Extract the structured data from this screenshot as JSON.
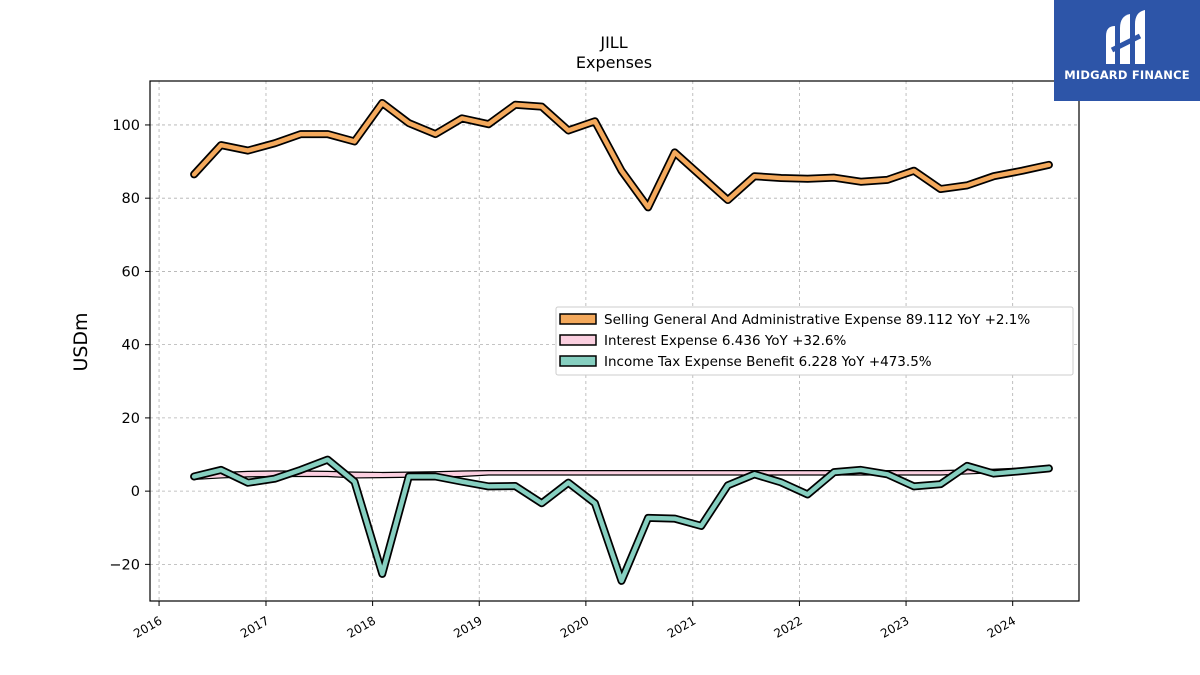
{
  "brand": {
    "name": "MIDGARD FINANCE",
    "bg_color": "#2d55a8"
  },
  "chart_data": {
    "type": "line",
    "title": "JILL",
    "subtitle": "Expenses",
    "ylabel": "USDm",
    "xlabel": "",
    "ylim": [
      -30,
      112
    ],
    "xlim": [
      "2015-12-01",
      "2024-08-15"
    ],
    "yticks": [
      -20,
      0,
      20,
      40,
      60,
      80,
      100
    ],
    "ytick_labels": [
      "−20",
      "0",
      "20",
      "40",
      "60",
      "80",
      "100"
    ],
    "xticks": [
      "2016-01-01",
      "2017-01-01",
      "2018-01-01",
      "2019-01-01",
      "2020-01-01",
      "2021-01-01",
      "2022-01-01",
      "2023-01-01",
      "2024-01-01"
    ],
    "xtick_labels": [
      "2016",
      "2017",
      "2018",
      "2019",
      "2020",
      "2021",
      "2022",
      "2023",
      "2024"
    ],
    "grid": true,
    "legend_position": "center-right",
    "series": [
      {
        "name": "Selling General And Administrative Expense",
        "legend": "Selling General And Administrative Expense  89.112 YoY +2.1%",
        "color": "#f4a95c",
        "style": "outlined-thick",
        "x": [
          "2016-04-30",
          "2016-07-31",
          "2016-10-31",
          "2017-01-31",
          "2017-04-30",
          "2017-07-31",
          "2017-10-31",
          "2018-02-03",
          "2018-05-05",
          "2018-08-04",
          "2018-11-03",
          "2019-02-02",
          "2019-05-04",
          "2019-08-03",
          "2019-11-02",
          "2020-02-01",
          "2020-05-02",
          "2020-08-01",
          "2020-10-31",
          "2021-01-30",
          "2021-05-01",
          "2021-07-31",
          "2021-10-30",
          "2022-01-29",
          "2022-04-30",
          "2022-07-30",
          "2022-10-29",
          "2023-01-28",
          "2023-04-29",
          "2023-07-29",
          "2023-10-28",
          "2024-02-03",
          "2024-05-04"
        ],
        "y": [
          86.5,
          94.5,
          93,
          95,
          97.5,
          97.5,
          95.5,
          106,
          100.5,
          97.5,
          101.8,
          100.2,
          105.5,
          105,
          98.5,
          101,
          87.5,
          77.5,
          92.5,
          86,
          79.5,
          86,
          85.5,
          85.3,
          85.6,
          84.5,
          85,
          87.5,
          82.5,
          83.5,
          86,
          87.5,
          89.1
        ]
      },
      {
        "name": "Interest Expense",
        "legend": "Interest Expense  6.436 YoY +32.6%",
        "color": "#fbcfe0",
        "style": "band",
        "x": [
          "2016-04-30",
          "2016-07-31",
          "2016-10-31",
          "2017-01-31",
          "2017-04-30",
          "2017-07-31",
          "2017-10-31",
          "2018-02-03",
          "2018-05-05",
          "2018-08-04",
          "2018-11-03",
          "2019-02-02",
          "2019-05-04",
          "2019-08-03",
          "2019-11-02",
          "2020-02-01",
          "2020-05-02",
          "2020-08-01",
          "2020-10-31",
          "2021-01-30",
          "2021-05-01",
          "2021-07-31",
          "2021-10-30",
          "2022-01-29",
          "2022-04-30",
          "2022-07-30",
          "2022-10-29",
          "2023-01-28",
          "2023-04-29",
          "2023-07-29",
          "2023-10-28",
          "2024-02-03",
          "2024-05-04"
        ],
        "y": [
          4.6,
          5.1,
          5.4,
          5.5,
          5.5,
          5.4,
          5.2,
          5.1,
          5.2,
          5.3,
          5.5,
          5.6,
          5.6,
          5.6,
          5.6,
          5.6,
          5.6,
          5.6,
          5.6,
          5.6,
          5.6,
          5.6,
          5.6,
          5.6,
          5.6,
          5.6,
          5.6,
          5.6,
          5.6,
          5.8,
          6.0,
          6.3,
          6.4
        ],
        "y_low": [
          3.2,
          3.6,
          3.9,
          4.0,
          4.0,
          4.0,
          3.6,
          3.7,
          3.8,
          3.9,
          4.0,
          4.4,
          4.4,
          4.4,
          4.4,
          4.4,
          4.4,
          4.4,
          4.4,
          4.4,
          4.4,
          4.4,
          4.4,
          4.4,
          4.4,
          4.4,
          4.4,
          4.4,
          4.4,
          4.7,
          5.0,
          5.5,
          6.0
        ]
      },
      {
        "name": "Income Tax Expense Benefit",
        "legend": "Income Tax Expense Benefit  6.228 YoY +473.5%",
        "color": "#86cfc0",
        "style": "outlined-thick",
        "x": [
          "2016-04-30",
          "2016-07-31",
          "2016-10-31",
          "2017-01-31",
          "2017-04-30",
          "2017-07-31",
          "2017-10-31",
          "2018-02-03",
          "2018-05-05",
          "2018-08-04",
          "2018-11-03",
          "2019-02-02",
          "2019-05-04",
          "2019-08-03",
          "2019-11-02",
          "2020-02-01",
          "2020-05-02",
          "2020-08-01",
          "2020-10-31",
          "2021-01-30",
          "2021-05-01",
          "2021-07-31",
          "2021-10-30",
          "2022-01-29",
          "2022-04-30",
          "2022-07-30",
          "2022-10-29",
          "2023-01-28",
          "2023-04-29",
          "2023-07-29",
          "2023-10-28",
          "2024-02-03",
          "2024-05-04"
        ],
        "y": [
          4,
          5.8,
          2.3,
          3.4,
          5.8,
          8.6,
          2.6,
          -22.6,
          4,
          4,
          2.6,
          1.3,
          1.4,
          -3.3,
          2.3,
          -3.3,
          -24.5,
          -7.3,
          -7.5,
          -9.5,
          1.6,
          4.6,
          2.4,
          -0.9,
          5.2,
          5.8,
          4.6,
          1.3,
          1.9,
          6.9,
          4.8,
          5.5,
          6.2
        ]
      }
    ]
  }
}
